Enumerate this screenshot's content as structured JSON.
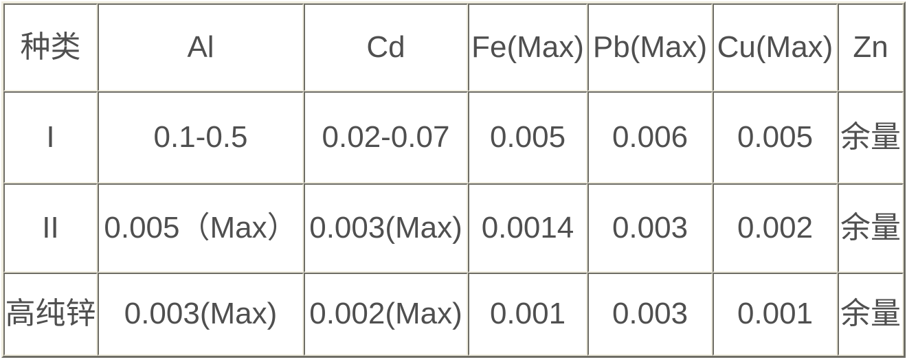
{
  "table": {
    "columns": [
      "种类",
      "Al",
      "Cd",
      "Fe(Max)",
      "Pb(Max)",
      "Cu(Max)",
      "Zn"
    ],
    "rows": [
      [
        "I",
        "0.1-0.5",
        "0.02-0.07",
        "0.005",
        "0.006",
        "0.005",
        "余量"
      ],
      [
        "II",
        "0.005（Max）",
        "0.003(Max)",
        "0.0014",
        "0.003",
        "0.002",
        "余量"
      ],
      [
        "高纯锌",
        "0.003(Max)",
        "0.002(Max)",
        "0.001",
        "0.003",
        "0.001",
        "余量"
      ]
    ]
  },
  "colors": {
    "cream": "#f0eddf",
    "dark": "#6e6d65",
    "text": "#4f4f4f",
    "cellbg": "#ffffff"
  }
}
